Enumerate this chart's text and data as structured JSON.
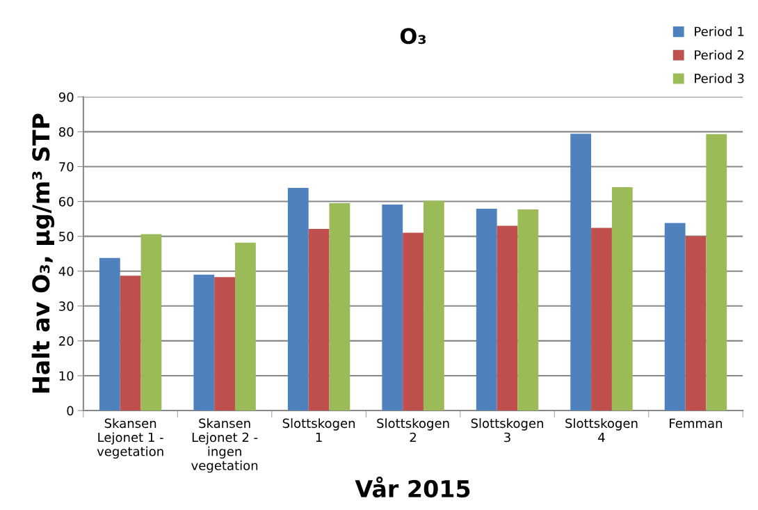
{
  "chart_data": {
    "type": "bar",
    "title": "O₃",
    "xlabel": "Vår 2015",
    "ylabel": "Halt av O₃, µg/m³ STP",
    "categories": [
      "Skansen\nLejonet 1 -\nvegetation",
      "Skansen\nLejonet 2 -\ningen\nvegetation",
      "Slottskogen\n1",
      "Slottskogen\n2",
      "Slottskogen\n3",
      "Slottskogen\n4",
      "Femman"
    ],
    "series": [
      {
        "name": "Period 1",
        "color": "#4f81bd",
        "values": [
          43.8,
          39.0,
          63.9,
          59.1,
          57.9,
          79.4,
          53.8
        ]
      },
      {
        "name": "Period 2",
        "color": "#c0504d",
        "values": [
          38.7,
          38.3,
          52.1,
          51.0,
          53.0,
          52.4,
          50.0
        ]
      },
      {
        "name": "Period 3",
        "color": "#9bbb59",
        "values": [
          50.6,
          48.2,
          59.5,
          60.2,
          57.7,
          64.1,
          79.3
        ]
      }
    ],
    "ylim": [
      0,
      90
    ],
    "yticks": [
      0,
      10,
      20,
      30,
      40,
      50,
      60,
      70,
      80,
      90
    ],
    "grid": "y",
    "legend": "top right"
  }
}
